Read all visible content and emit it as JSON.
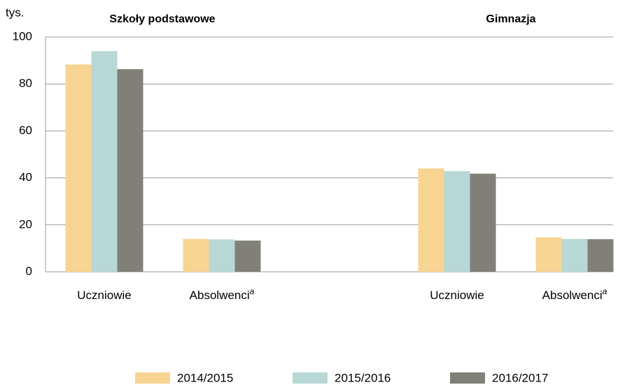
{
  "chart_data": {
    "type": "bar",
    "unit_label": "tys.",
    "panel_titles": [
      "Szkoły podstawowe",
      "Gimnazja"
    ],
    "categories": [
      "Uczniowie",
      "Absolwenci",
      "Uczniowie",
      "Absolwenci"
    ],
    "category_notes": [
      null,
      "a",
      null,
      "a"
    ],
    "series": [
      {
        "name": "2014/2015",
        "color": "#f8d492",
        "values": [
          88.3,
          14,
          44,
          14.7
        ]
      },
      {
        "name": "2015/2016",
        "color": "#b8d8d6",
        "values": [
          94,
          13.8,
          42.9,
          14
        ]
      },
      {
        "name": "2016/2017",
        "color": "#808078",
        "values": [
          86.3,
          13.3,
          41.8,
          13.9
        ]
      }
    ],
    "ylim": [
      0,
      100
    ],
    "yticks": [
      0,
      20,
      40,
      60,
      80,
      100
    ],
    "grid": true
  }
}
